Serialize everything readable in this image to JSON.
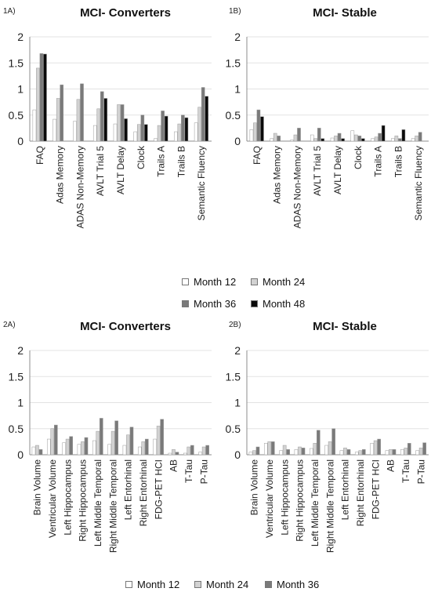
{
  "colors": {
    "month12": "#ffffff",
    "month24": "#d2d2d2",
    "month36": "#7a7a7a",
    "month48": "#0a0a0a",
    "axis": "#8c8c8c",
    "grid": "#e3e3e3",
    "bar_edge": "#9a9a9a"
  },
  "legend_top": [
    {
      "label": "Month 12",
      "color_key": "month12"
    },
    {
      "label": "Month 24",
      "color_key": "month24"
    },
    {
      "label": "Month 36",
      "color_key": "month36"
    },
    {
      "label": "Month 48",
      "color_key": "month48"
    }
  ],
  "legend_bottom": [
    {
      "label": "Month 12",
      "color_key": "month12"
    },
    {
      "label": "Month 24",
      "color_key": "month24"
    },
    {
      "label": "Month 36",
      "color_key": "month36"
    }
  ],
  "chart_data": [
    {
      "panel": "1A)",
      "type": "bar",
      "title": "MCI- Converters",
      "ylim": [
        0,
        2
      ],
      "yticks": [
        "0",
        "0.5",
        "1",
        "1.5",
        "2"
      ],
      "grid": true,
      "legend": "below",
      "categories": [
        "FAQ",
        "Adas Memory",
        "ADAS Non-Memory",
        "AVLT Trial 5",
        "AVLT Delay",
        "Clock",
        "Trails A",
        "Trails B",
        "Semantic Fluency"
      ],
      "series": [
        {
          "name": "Month 12",
          "color_key": "month12",
          "values": [
            0.6,
            0.42,
            0.38,
            0.3,
            0.33,
            0.18,
            0.05,
            0.18,
            0.35
          ]
        },
        {
          "name": "Month 24",
          "color_key": "month24",
          "values": [
            1.4,
            0.82,
            0.8,
            0.62,
            0.7,
            0.32,
            0.3,
            0.33,
            0.65
          ]
        },
        {
          "name": "Month 36",
          "color_key": "month36",
          "values": [
            1.68,
            1.08,
            1.1,
            0.95,
            0.7,
            0.5,
            0.58,
            0.5,
            1.03
          ]
        },
        {
          "name": "Month 48",
          "color_key": "month48",
          "values": [
            1.67,
            0.0,
            0.0,
            0.82,
            0.43,
            0.32,
            0.48,
            0.45,
            0.86
          ]
        }
      ]
    },
    {
      "panel": "1B)",
      "type": "bar",
      "title": "MCI- Stable",
      "ylim": [
        0,
        2
      ],
      "yticks": [
        "0",
        "0.5",
        "1",
        "1.5",
        "2"
      ],
      "grid": true,
      "legend": "below",
      "categories": [
        "FAQ",
        "Adas Memory",
        "ADAS Non-Memory",
        "AVLT Trial 5",
        "AVLT Delay",
        "Clock",
        "Trails A",
        "Trails B",
        "Semantic Fluency"
      ],
      "series": [
        {
          "name": "Month 12",
          "color_key": "month12",
          "values": [
            0.22,
            0.05,
            0.02,
            0.12,
            0.06,
            0.2,
            0.05,
            0.05,
            0.05
          ]
        },
        {
          "name": "Month 24",
          "color_key": "month24",
          "values": [
            0.35,
            0.15,
            0.12,
            0.05,
            0.1,
            0.12,
            0.08,
            0.1,
            0.1
          ]
        },
        {
          "name": "Month 36",
          "color_key": "month36",
          "values": [
            0.6,
            0.1,
            0.25,
            0.25,
            0.15,
            0.1,
            0.15,
            0.05,
            0.17
          ]
        },
        {
          "name": "Month 48",
          "color_key": "month48",
          "values": [
            0.47,
            0.0,
            0.0,
            0.05,
            0.05,
            0.05,
            0.3,
            0.22,
            0.0
          ]
        }
      ]
    },
    {
      "panel": "2A)",
      "type": "bar",
      "title": "MCI- Converters",
      "ylim": [
        0,
        2
      ],
      "yticks": [
        "0",
        "0.5",
        "1",
        "1.5",
        "2"
      ],
      "grid": true,
      "legend": "below",
      "categories": [
        "Brain Volume",
        "Ventricular Volume",
        "Left Hippocampus",
        "Right Hippocampus",
        "Left Middle Temporal",
        "Right Middle Temporal",
        "Left Entorhinal",
        "Right Entorhinal",
        "FDG-PET HCI",
        "AB",
        "T-Tau",
        "P-Tau"
      ],
      "series": [
        {
          "name": "Month 12",
          "color_key": "month12",
          "values": [
            0.15,
            0.3,
            0.23,
            0.2,
            0.27,
            0.2,
            0.18,
            0.15,
            0.3,
            0.03,
            0.03,
            0.05
          ]
        },
        {
          "name": "Month 24",
          "color_key": "month24",
          "values": [
            0.18,
            0.5,
            0.3,
            0.25,
            0.45,
            0.45,
            0.38,
            0.25,
            0.55,
            0.1,
            0.15,
            0.15
          ]
        },
        {
          "name": "Month 36",
          "color_key": "month36",
          "values": [
            0.1,
            0.57,
            0.35,
            0.33,
            0.7,
            0.65,
            0.53,
            0.3,
            0.68,
            0.05,
            0.18,
            0.18
          ]
        }
      ]
    },
    {
      "panel": "2B)",
      "type": "bar",
      "title": "MCI- Stable",
      "ylim": [
        0,
        2
      ],
      "yticks": [
        "0",
        "0.5",
        "1",
        "1.5",
        "2"
      ],
      "grid": true,
      "legend": "below",
      "categories": [
        "Brain Volume",
        "Ventricular Volume",
        "Left Hippocampus",
        "Right Hippocampus",
        "Left Middle Temporal",
        "Right Middle Temporal",
        "Left Entorhinal",
        "Right Entorhinal",
        "FDG-PET HCI",
        "AB",
        "T-Tau",
        "P-Tau"
      ],
      "series": [
        {
          "name": "Month 12",
          "color_key": "month12",
          "values": [
            0.05,
            0.22,
            0.08,
            0.1,
            0.12,
            0.18,
            0.08,
            0.05,
            0.22,
            0.08,
            0.1,
            0.08
          ]
        },
        {
          "name": "Month 24",
          "color_key": "month24",
          "values": [
            0.08,
            0.25,
            0.18,
            0.15,
            0.22,
            0.25,
            0.13,
            0.08,
            0.27,
            0.1,
            0.13,
            0.13
          ]
        },
        {
          "name": "Month 36",
          "color_key": "month36",
          "values": [
            0.15,
            0.25,
            0.1,
            0.13,
            0.47,
            0.5,
            0.1,
            0.1,
            0.3,
            0.1,
            0.22,
            0.23
          ]
        }
      ]
    }
  ]
}
